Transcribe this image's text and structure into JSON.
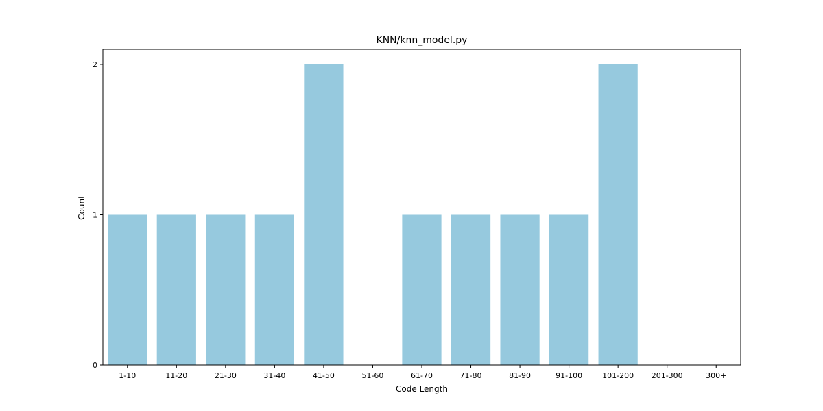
{
  "chart_data": {
    "type": "bar",
    "title": "KNN/knn_model.py",
    "xlabel": "Code Length",
    "ylabel": "Count",
    "categories": [
      "1-10",
      "11-20",
      "21-30",
      "31-40",
      "41-50",
      "51-60",
      "61-70",
      "71-80",
      "81-90",
      "91-100",
      "101-200",
      "201-300",
      "300+"
    ],
    "values": [
      1,
      1,
      1,
      1,
      2,
      0,
      1,
      1,
      1,
      1,
      2,
      0,
      0
    ],
    "ylim": [
      0,
      2.1
    ],
    "yticks": [
      "0",
      "1",
      "2"
    ],
    "bar_color": "#96c9de",
    "grid": false,
    "legend": "none"
  }
}
